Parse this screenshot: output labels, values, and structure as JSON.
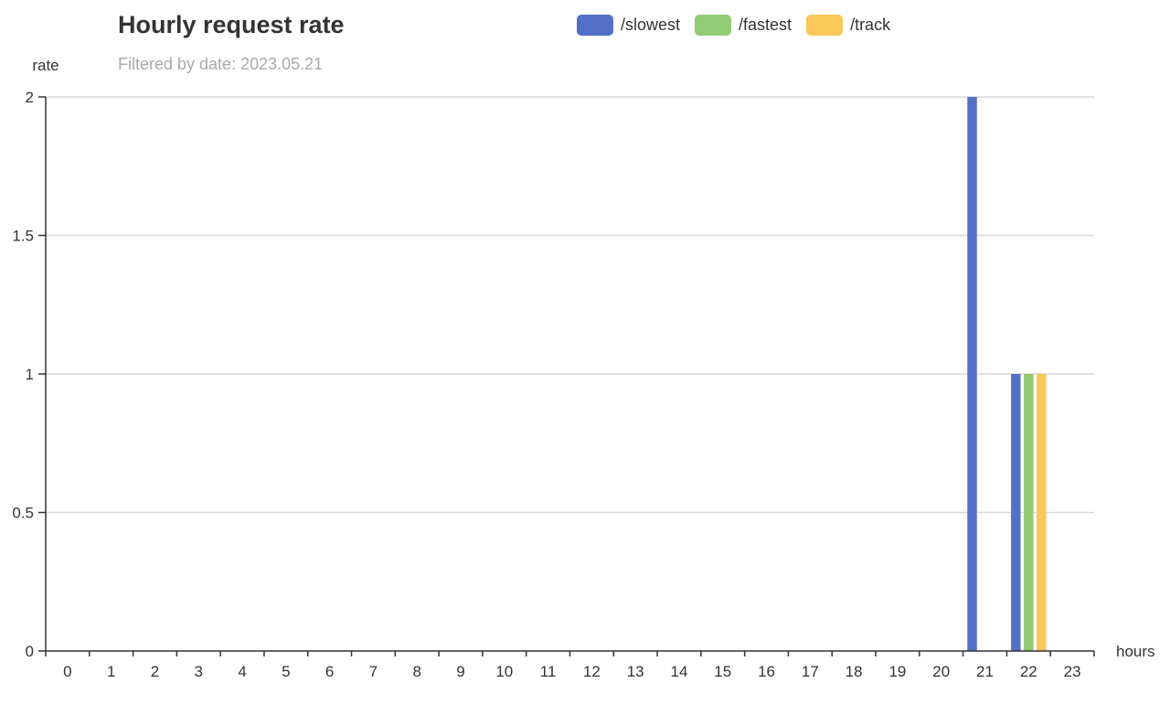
{
  "chart_data": {
    "type": "bar",
    "title": "Hourly request rate",
    "subtitle": "Filtered by date: 2023.05.21",
    "xlabel": "hours",
    "ylabel": "rate",
    "categories": [
      "0",
      "1",
      "2",
      "3",
      "4",
      "5",
      "6",
      "7",
      "8",
      "9",
      "10",
      "11",
      "12",
      "13",
      "14",
      "15",
      "16",
      "17",
      "18",
      "19",
      "20",
      "21",
      "22",
      "23"
    ],
    "ylim": [
      0,
      2
    ],
    "yticks": [
      "0",
      "0.5",
      "1",
      "1.5",
      "2"
    ],
    "ytick_values": [
      0,
      0.5,
      1,
      1.5,
      2
    ],
    "grid": true,
    "legend_position": "top",
    "series": [
      {
        "name": "/slowest",
        "color": "#5470c6",
        "values": [
          0,
          0,
          0,
          0,
          0,
          0,
          0,
          0,
          0,
          0,
          0,
          0,
          0,
          0,
          0,
          0,
          0,
          0,
          0,
          0,
          0,
          2,
          1,
          0
        ]
      },
      {
        "name": "/fastest",
        "color": "#91cc75",
        "values": [
          0,
          0,
          0,
          0,
          0,
          0,
          0,
          0,
          0,
          0,
          0,
          0,
          0,
          0,
          0,
          0,
          0,
          0,
          0,
          0,
          0,
          0,
          1,
          0
        ]
      },
      {
        "name": "/track",
        "color": "#fac858",
        "values": [
          0,
          0,
          0,
          0,
          0,
          0,
          0,
          0,
          0,
          0,
          0,
          0,
          0,
          0,
          0,
          0,
          0,
          0,
          0,
          0,
          0,
          0,
          1,
          0
        ]
      }
    ]
  }
}
